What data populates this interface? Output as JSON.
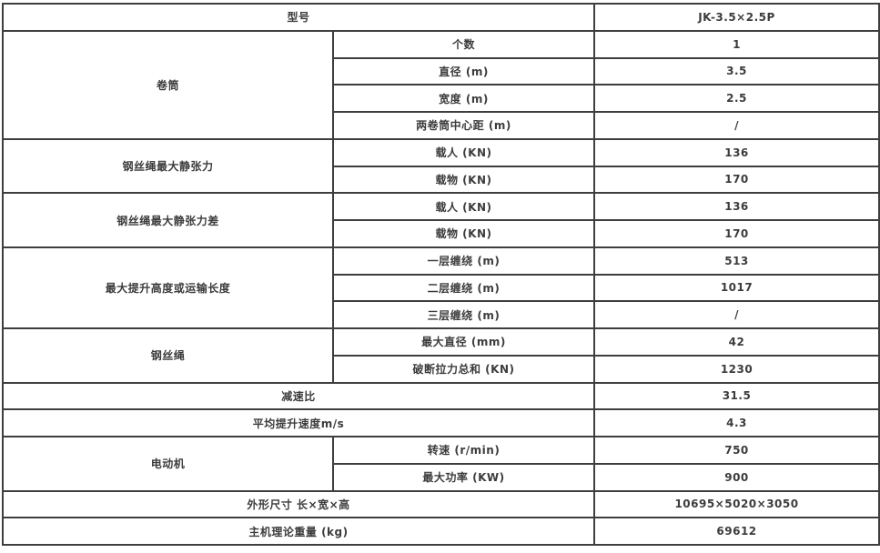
{
  "page": {
    "background_color": "#ffffff",
    "border_color": "#3e3e3e",
    "text_color": "#3c3c3c"
  },
  "table": {
    "rows": [
      {
        "cells": [
          "型号",
          "JK-3.5×2.5P"
        ]
      },
      {
        "cells": [
          "卷筒",
          "个数",
          "1"
        ]
      },
      {
        "cells": [
          "直径 (m)",
          "3.5"
        ]
      },
      {
        "cells": [
          "宽度 (m)",
          "2.5"
        ]
      },
      {
        "cells": [
          "两卷筒中心距 (m)",
          "/"
        ]
      },
      {
        "cells": [
          "钢丝绳最大静张力",
          "载人 (KN)",
          "136"
        ]
      },
      {
        "cells": [
          "载物 (KN)",
          "170"
        ]
      },
      {
        "cells": [
          "钢丝绳最大静张力差",
          "载人 (KN)",
          "136"
        ]
      },
      {
        "cells": [
          "载物 (KN)",
          "170"
        ]
      },
      {
        "cells": [
          "最大提升高度或运输长度",
          "一层缠绕 (m)",
          "513"
        ]
      },
      {
        "cells": [
          "二层缠绕 (m)",
          "1017"
        ]
      },
      {
        "cells": [
          "三层缠绕 (m)",
          "/"
        ]
      },
      {
        "cells": [
          "钢丝绳",
          "最大直径 (mm)",
          "42"
        ]
      },
      {
        "cells": [
          "破断拉力总和 (KN)",
          "1230"
        ]
      },
      {
        "cells": [
          "减速比",
          "31.5"
        ]
      },
      {
        "cells": [
          "平均提升速度m/s",
          "4.3"
        ]
      },
      {
        "cells": [
          "电动机",
          "转速 (r/min)",
          "750"
        ]
      },
      {
        "cells": [
          "最大功率 (KW)",
          "900"
        ]
      },
      {
        "cells": [
          "外形尺寸 长×宽×高",
          "10695×5020×3050"
        ]
      },
      {
        "cells": [
          "主机理论重量 (kg)",
          "69612"
        ]
      }
    ]
  }
}
